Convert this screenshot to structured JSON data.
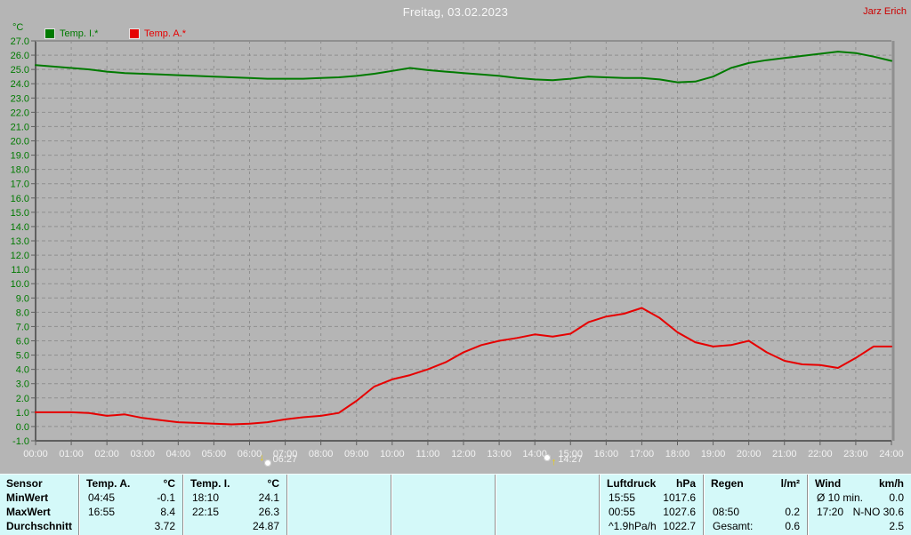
{
  "header": {
    "title": "Freitag, 03.02.2023",
    "owner": "Jarz Erich"
  },
  "legend": {
    "unit": "°C",
    "items": [
      {
        "label": "Temp. I.*",
        "color": "#007a00"
      },
      {
        "label": "Temp. A.*",
        "color": "#e60000"
      }
    ]
  },
  "colors": {
    "background": "#b5b5b5",
    "plot_grid": "#8f8f8f",
    "axis_dark": "#5f5f5f",
    "axis_light": "#8f8f8f",
    "y_label": "#007a00",
    "x_label": "#f2f2f2",
    "table_bg": "#d4f9f9",
    "title": "#f8f8f8",
    "owner": "#cc0000"
  },
  "chart_data": {
    "type": "line",
    "title": "Freitag, 03.02.2023",
    "ylabel": "°C",
    "xlabel": "",
    "xlim": [
      0,
      24
    ],
    "ylim": [
      -1,
      27
    ],
    "grid": true,
    "x_ticks": [
      "00:00",
      "01:00",
      "02:00",
      "03:00",
      "04:00",
      "05:00",
      "06:00",
      "07:00",
      "08:00",
      "09:00",
      "10:00",
      "11:00",
      "12:00",
      "13:00",
      "14:00",
      "15:00",
      "16:00",
      "17:00",
      "18:00",
      "19:00",
      "20:00",
      "21:00",
      "22:00",
      "23:00",
      "24:00"
    ],
    "y_ticks": [
      "27.0",
      "26.0",
      "25.0",
      "24.0",
      "23.0",
      "22.0",
      "21.0",
      "20.0",
      "19.0",
      "18.0",
      "17.0",
      "16.0",
      "15.0",
      "14.0",
      "13.0",
      "12.0",
      "11.0",
      "10.0",
      "9.0",
      "8.0",
      "7.0",
      "6.0",
      "5.0",
      "4.0",
      "3.0",
      "2.0",
      "1.0",
      "0.0",
      "-1.0"
    ],
    "x_start": 0,
    "x_step": 0.5,
    "series": [
      {
        "name": "Temp. I.*",
        "color": "#007a00",
        "values": [
          25.3,
          25.2,
          25.1,
          25.0,
          24.85,
          24.75,
          24.7,
          24.65,
          24.6,
          24.55,
          24.5,
          24.45,
          24.4,
          24.35,
          24.35,
          24.35,
          24.4,
          24.45,
          24.55,
          24.7,
          24.9,
          25.1,
          24.95,
          24.85,
          24.75,
          24.65,
          24.55,
          24.4,
          24.3,
          24.25,
          24.35,
          24.5,
          24.45,
          24.4,
          24.4,
          24.3,
          24.1,
          24.15,
          24.5,
          25.1,
          25.45,
          25.65,
          25.8,
          25.95,
          26.1,
          26.25,
          26.15,
          25.9,
          25.6
        ]
      },
      {
        "name": "Temp. A.*",
        "color": "#e60000",
        "values": [
          1.0,
          1.0,
          1.0,
          0.95,
          0.75,
          0.85,
          0.6,
          0.45,
          0.3,
          0.25,
          0.2,
          0.15,
          0.2,
          0.3,
          0.5,
          0.65,
          0.75,
          0.95,
          1.8,
          2.8,
          3.3,
          3.6,
          4.0,
          4.5,
          5.2,
          5.7,
          6.0,
          6.2,
          6.45,
          6.3,
          6.5,
          7.3,
          7.7,
          7.9,
          8.3,
          7.6,
          6.6,
          5.9,
          5.6,
          5.7,
          6.0,
          5.2,
          4.6,
          4.35,
          4.3,
          4.1,
          4.8,
          5.6,
          5.6
        ]
      }
    ],
    "moon_markers": [
      {
        "time": "06:27",
        "type": "set"
      },
      {
        "time": "14:27",
        "type": "rise"
      }
    ]
  },
  "stats_table": {
    "row_labels": [
      "Sensor",
      "MinWert",
      "MaxWert",
      "Durchschnitt"
    ],
    "groups": [
      {
        "name": "Temp. A.",
        "unit": "°C",
        "rows": [
          [
            "04:45",
            "-0.1"
          ],
          [
            "16:55",
            "8.4"
          ],
          [
            "",
            "3.72"
          ]
        ]
      },
      {
        "name": "Temp. I.",
        "unit": "°C",
        "rows": [
          [
            "18:10",
            "24.1"
          ],
          [
            "22:15",
            "26.3"
          ],
          [
            "",
            "24.87"
          ]
        ]
      },
      {
        "name": "",
        "unit": "",
        "rows": [
          [
            "",
            ""
          ],
          [
            "",
            ""
          ],
          [
            "",
            ""
          ]
        ]
      },
      {
        "name": "",
        "unit": "",
        "rows": [
          [
            "",
            ""
          ],
          [
            "",
            ""
          ],
          [
            "",
            ""
          ]
        ]
      },
      {
        "name": "",
        "unit": "",
        "rows": [
          [
            "",
            ""
          ],
          [
            "",
            ""
          ],
          [
            "",
            ""
          ]
        ]
      },
      {
        "name": "Luftdruck",
        "unit": "hPa",
        "rows": [
          [
            "15:55",
            "1017.6"
          ],
          [
            "00:55",
            "1027.6"
          ],
          [
            "^1.9hPa/h",
            "1022.7"
          ]
        ]
      },
      {
        "name": "Regen",
        "unit": "l/m²",
        "rows": [
          [
            "",
            ""
          ],
          [
            "08:50",
            "0.2"
          ],
          [
            "Gesamt:",
            "0.6"
          ]
        ]
      },
      {
        "name": "Wind",
        "unit": "km/h",
        "rows": [
          [
            "Ø 10 min.",
            "0.0"
          ],
          [
            "17:20",
            "N-NO 30.6"
          ],
          [
            "",
            "2.5"
          ]
        ]
      }
    ]
  }
}
